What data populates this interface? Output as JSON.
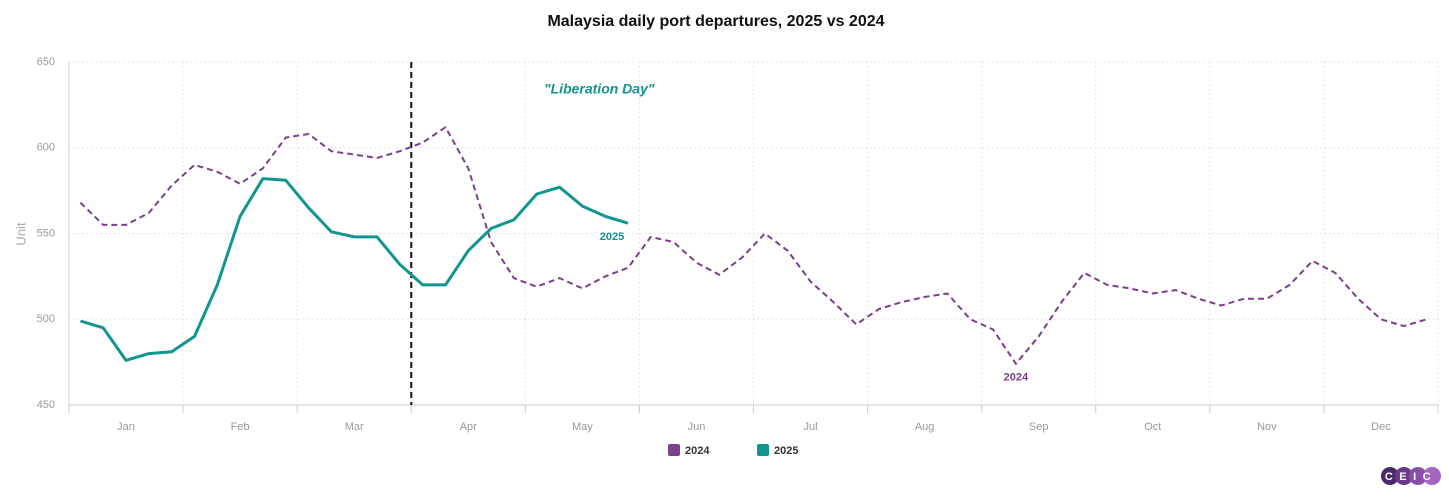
{
  "chart_data": {
    "type": "line",
    "title": "Malaysia daily port departures, 2025 vs 2024",
    "y_label": "Unit",
    "categories": [
      null,
      null,
      "Jan",
      null,
      null,
      null,
      null,
      "Feb",
      null,
      null,
      null,
      null,
      "Mar",
      null,
      null,
      null,
      null,
      "Apr",
      null,
      null,
      null,
      null,
      "May",
      null,
      null,
      null,
      null,
      "Jun",
      null,
      null,
      null,
      null,
      "Jul",
      null,
      null,
      null,
      null,
      "Aug",
      null,
      null,
      null,
      null,
      "Sep",
      null,
      null,
      null,
      null,
      "Oct",
      null,
      null,
      null,
      null,
      "Nov",
      null,
      null,
      null,
      null,
      "Dec",
      null,
      null
    ],
    "series": [
      {
        "name": "2024",
        "color": "#7b3f8c",
        "dashed": true,
        "values": [
          568,
          555,
          555,
          562,
          578,
          590,
          586,
          579,
          588,
          606,
          608,
          598,
          596,
          594,
          598,
          603,
          612,
          588,
          545,
          524,
          519,
          524,
          518,
          525,
          530,
          548,
          545,
          533,
          526,
          536,
          550,
          540,
          522,
          510,
          497,
          506,
          510,
          513,
          515,
          500,
          494,
          474,
          490,
          510,
          527,
          520,
          518,
          515,
          517,
          512,
          508,
          512,
          512,
          520,
          534,
          527,
          512,
          500,
          496,
          500
        ]
      },
      {
        "name": "2025",
        "color": "#12958f",
        "dashed": false,
        "values": [
          499,
          495,
          476,
          480,
          481,
          490,
          520,
          560,
          582,
          581,
          565,
          551,
          548,
          548,
          532,
          520,
          520,
          540,
          553,
          558,
          573,
          577,
          566,
          560,
          556,
          null,
          null,
          null,
          null,
          null,
          null,
          null,
          null,
          null,
          null,
          null,
          null,
          null,
          null,
          null,
          null,
          null,
          null,
          null,
          null,
          null,
          null,
          null,
          null,
          null,
          null,
          null,
          null,
          null,
          null,
          null,
          null,
          null,
          null,
          null
        ]
      }
    ],
    "event": {
      "label": "\"Liberation Day\"",
      "at": "Apr"
    },
    "ylim": [
      450,
      650
    ],
    "yticks": [
      450,
      500,
      550,
      600,
      650
    ],
    "grid": true,
    "legend": "bottom",
    "logo": "CEIC"
  }
}
